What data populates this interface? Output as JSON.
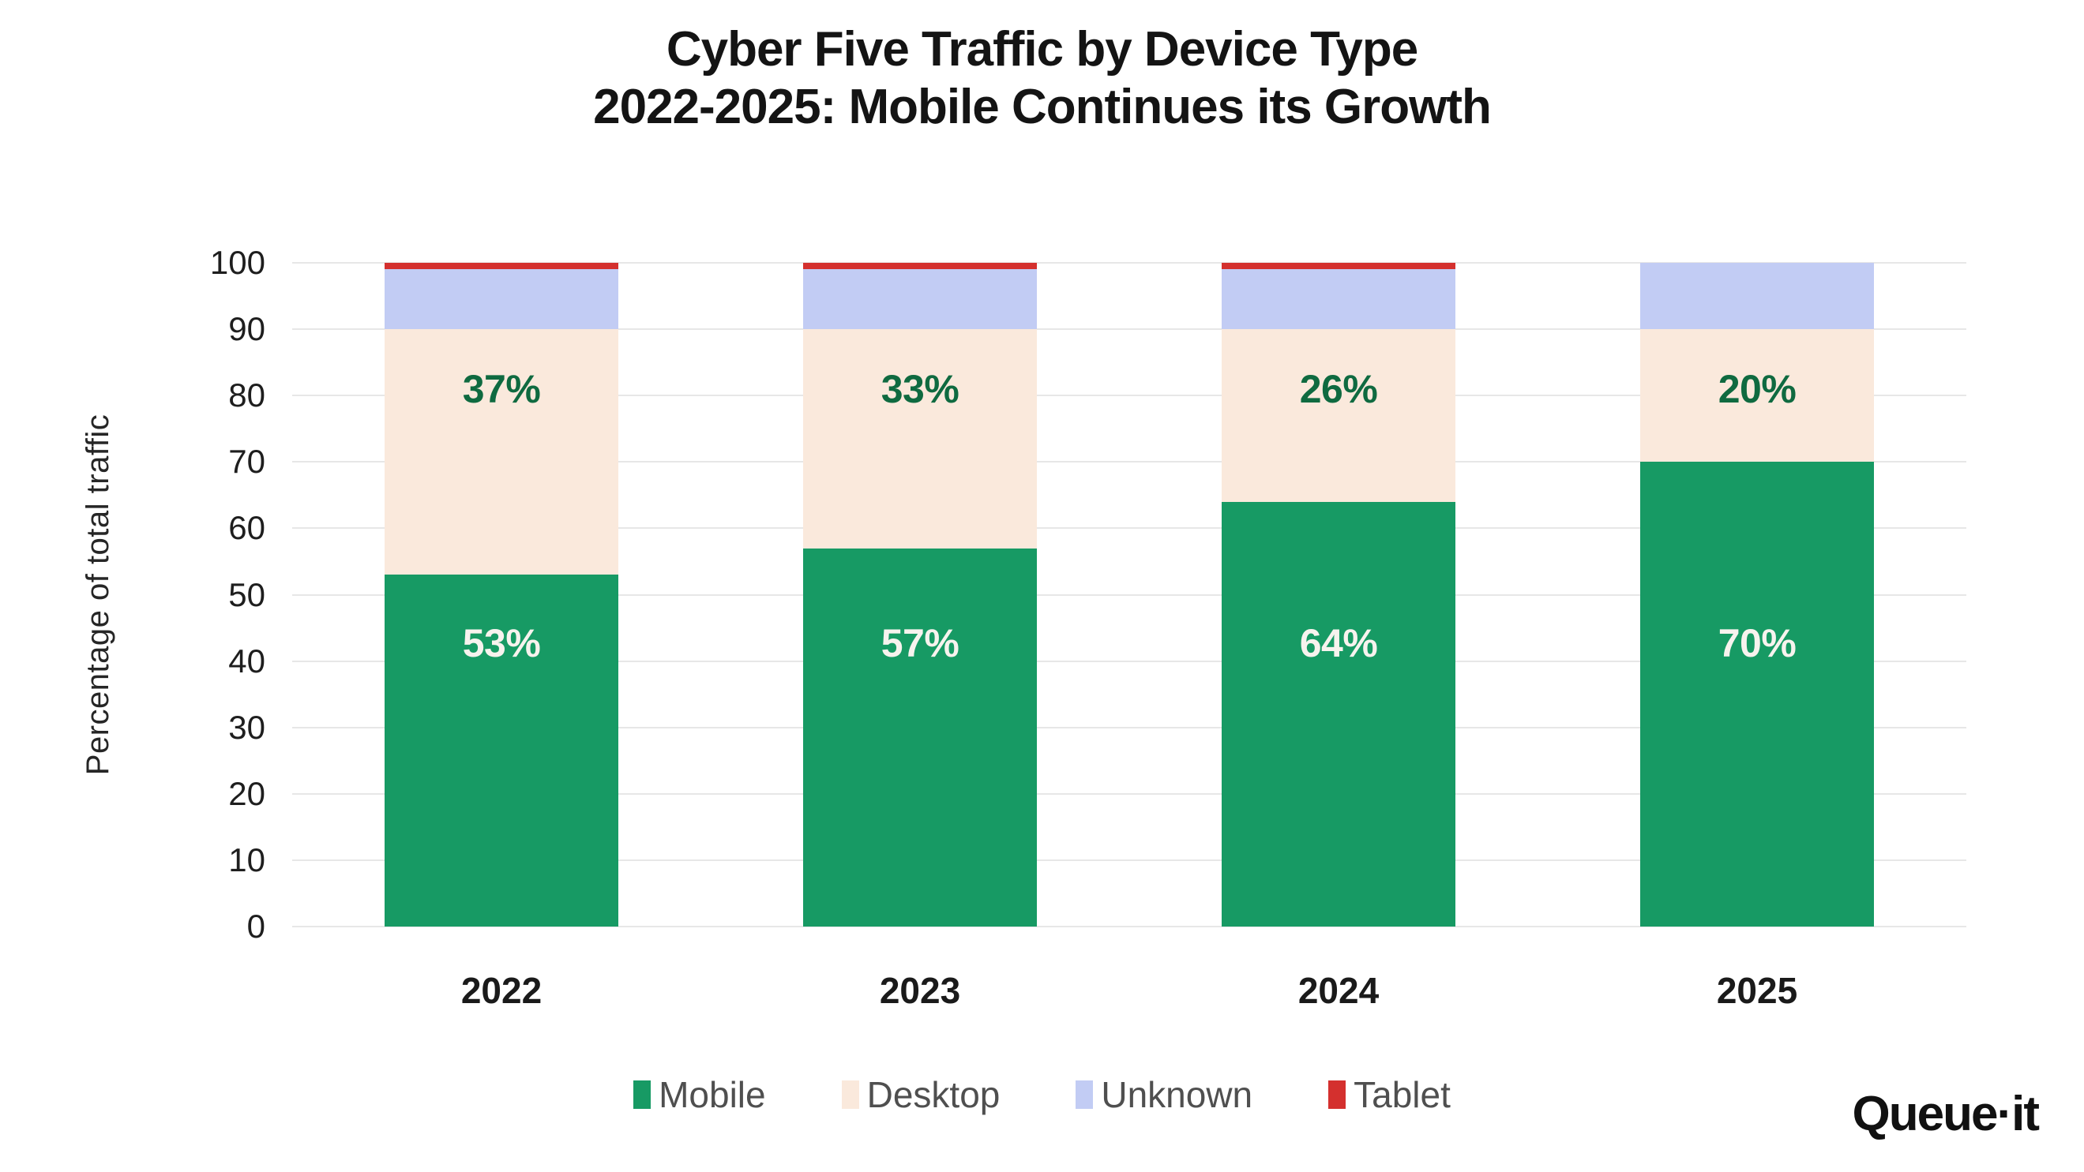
{
  "chart_data": {
    "type": "bar",
    "stacked": true,
    "title_lines": [
      "Cyber Five Traffic by Device Type",
      "2022-2025: Mobile Continues its Growth"
    ],
    "categories": [
      "2022",
      "2023",
      "2024",
      "2025"
    ],
    "series": [
      {
        "name": "Mobile",
        "color": "#179a64",
        "values": [
          53,
          57,
          64,
          70
        ],
        "data_labels": [
          "53%",
          "57%",
          "64%",
          "70%"
        ],
        "label_color": "#f7f3ee",
        "label_y_pct": 57.3
      },
      {
        "name": "Desktop",
        "color": "#fae9dc",
        "values": [
          37,
          33,
          26,
          20
        ],
        "data_labels": [
          "37%",
          "33%",
          "26%",
          "20%"
        ],
        "label_color": "#0f6a40",
        "label_y_pct": 19.0
      },
      {
        "name": "Unknown",
        "color": "#c2ccf4",
        "values": [
          9,
          9,
          9,
          10
        ]
      },
      {
        "name": "Tablet",
        "color": "#d4302e",
        "values": [
          1,
          1,
          1,
          0
        ]
      }
    ],
    "ylabel": "Percentage of total traffic",
    "yticks": [
      100,
      90,
      80,
      70,
      60,
      50,
      40,
      30,
      20,
      10,
      0
    ],
    "ylim": [
      0,
      100
    ],
    "grid": true,
    "legend_position": "bottom"
  },
  "branding": {
    "logo_text": "Queue·it"
  }
}
